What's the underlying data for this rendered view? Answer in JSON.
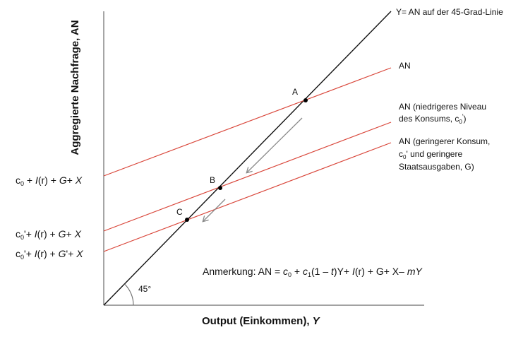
{
  "axes": {
    "y_label": "Aggregierte Nachfrage, AN",
    "x_label_main": "Output (Einkommen), ",
    "x_label_var": "Y",
    "angle_label": "45°"
  },
  "lines": {
    "line45_label": "Y= AN auf der 45-Grad-Linie",
    "an_label": "AN",
    "an2_label_l1": "AN (niedrigeres Niveau",
    "an2_label_l2": "des Konsums, c",
    "an2_label_sub": "0",
    "an2_label_sup": "'",
    "an2_label_end": ")",
    "an3_label_l1": "AN (geringerer Konsum,",
    "an3_label_l2_c": "c",
    "an3_label_l2_sub": "0",
    "an3_label_l2_rest": "' und geringere",
    "an3_label_l3": "Staatsausgaben, G)",
    "colors": {
      "an_lines": "#d9463a",
      "line45": "#111111",
      "arrows": "#8a8a8a"
    }
  },
  "points": {
    "a": "A",
    "b": "B",
    "c": "C"
  },
  "intercepts": {
    "i1": {
      "c": "c",
      "sub": "0",
      "rest1": " + ",
      "I": "I",
      "rest2": "(r) + ",
      "G": "G",
      "rest3": "+  ",
      "X": "X"
    },
    "i2": {
      "c": "c",
      "sub": "0",
      "rest1": "'+ ",
      "I": "I",
      "rest2": "(r) + ",
      "G": "G",
      "rest3": "+  ",
      "X": "X"
    },
    "i3": {
      "c": "c",
      "sub": "0",
      "rest1": "'+ ",
      "I": "I",
      "rest2": "(r) + ",
      "G": "G",
      "rest3": "'+ ",
      "X": "X"
    }
  },
  "note": {
    "prefix": "Anmerkung: AN = ",
    "c0": "c",
    "c0_sub": "0",
    "plus1": " + ",
    "c1": "c",
    "c1_sub": "1",
    "paren": "(1 – ",
    "t": "t",
    "after_t": ")Y+  ",
    "I": "I",
    "after_I": "(r) + G+  X–  ",
    "mY": "mY"
  }
}
